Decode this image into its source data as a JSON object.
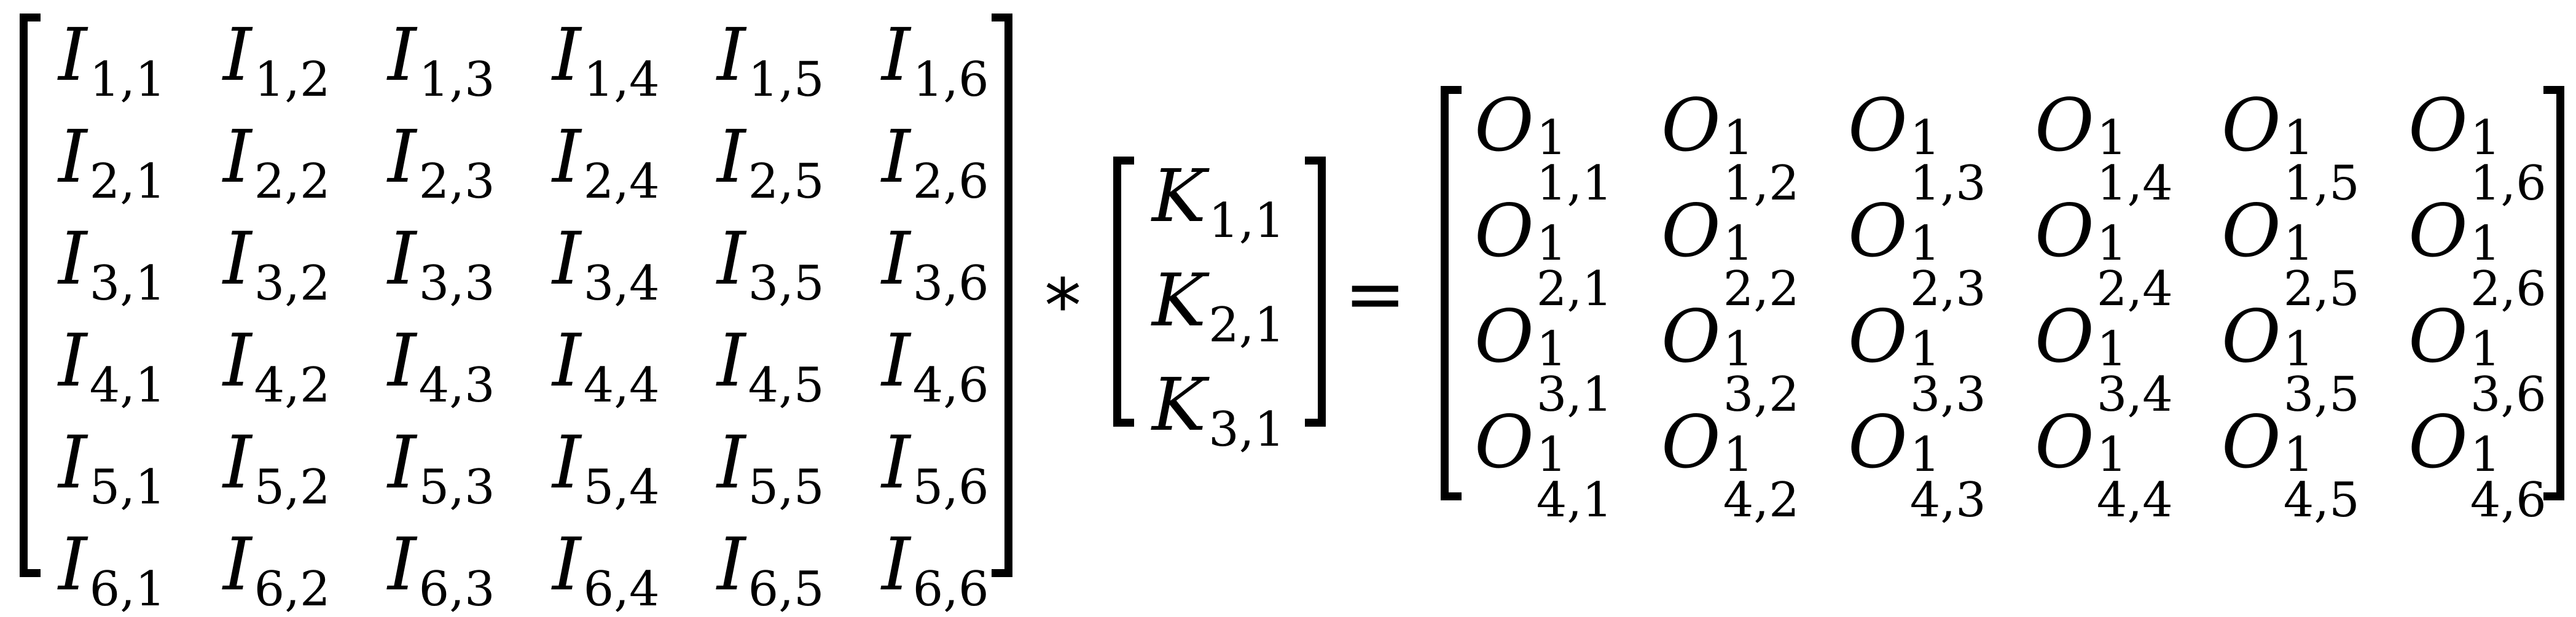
{
  "input_matrix": {
    "symbol": "I",
    "rows": [
      [
        "1,1",
        "1,2",
        "1,3",
        "1,4",
        "1,5",
        "1,6"
      ],
      [
        "2,1",
        "2,2",
        "2,3",
        "2,4",
        "2,5",
        "2,6"
      ],
      [
        "3,1",
        "3,2",
        "3,3",
        "3,4",
        "3,5",
        "3,6"
      ],
      [
        "4,1",
        "4,2",
        "4,3",
        "4,4",
        "4,5",
        "4,6"
      ],
      [
        "5,1",
        "5,2",
        "5,3",
        "5,4",
        "5,5",
        "5,6"
      ],
      [
        "6,1",
        "6,2",
        "6,3",
        "6,4",
        "6,5",
        "6,6"
      ]
    ]
  },
  "convolution_operator": "*",
  "kernel_matrix": {
    "symbol": "K",
    "rows": [
      [
        "1,1"
      ],
      [
        "2,1"
      ],
      [
        "3,1"
      ]
    ]
  },
  "equals_operator": "=",
  "output_matrix": {
    "symbol": "O",
    "superscript": "1",
    "rows": [
      [
        "1,1",
        "1,2",
        "1,3",
        "1,4",
        "1,5",
        "1,6"
      ],
      [
        "2,1",
        "2,2",
        "2,3",
        "2,4",
        "2,5",
        "2,6"
      ],
      [
        "3,1",
        "3,2",
        "3,3",
        "3,4",
        "3,5",
        "3,6"
      ],
      [
        "4,1",
        "4,2",
        "4,3",
        "4,4",
        "4,5",
        "4,6"
      ]
    ]
  }
}
